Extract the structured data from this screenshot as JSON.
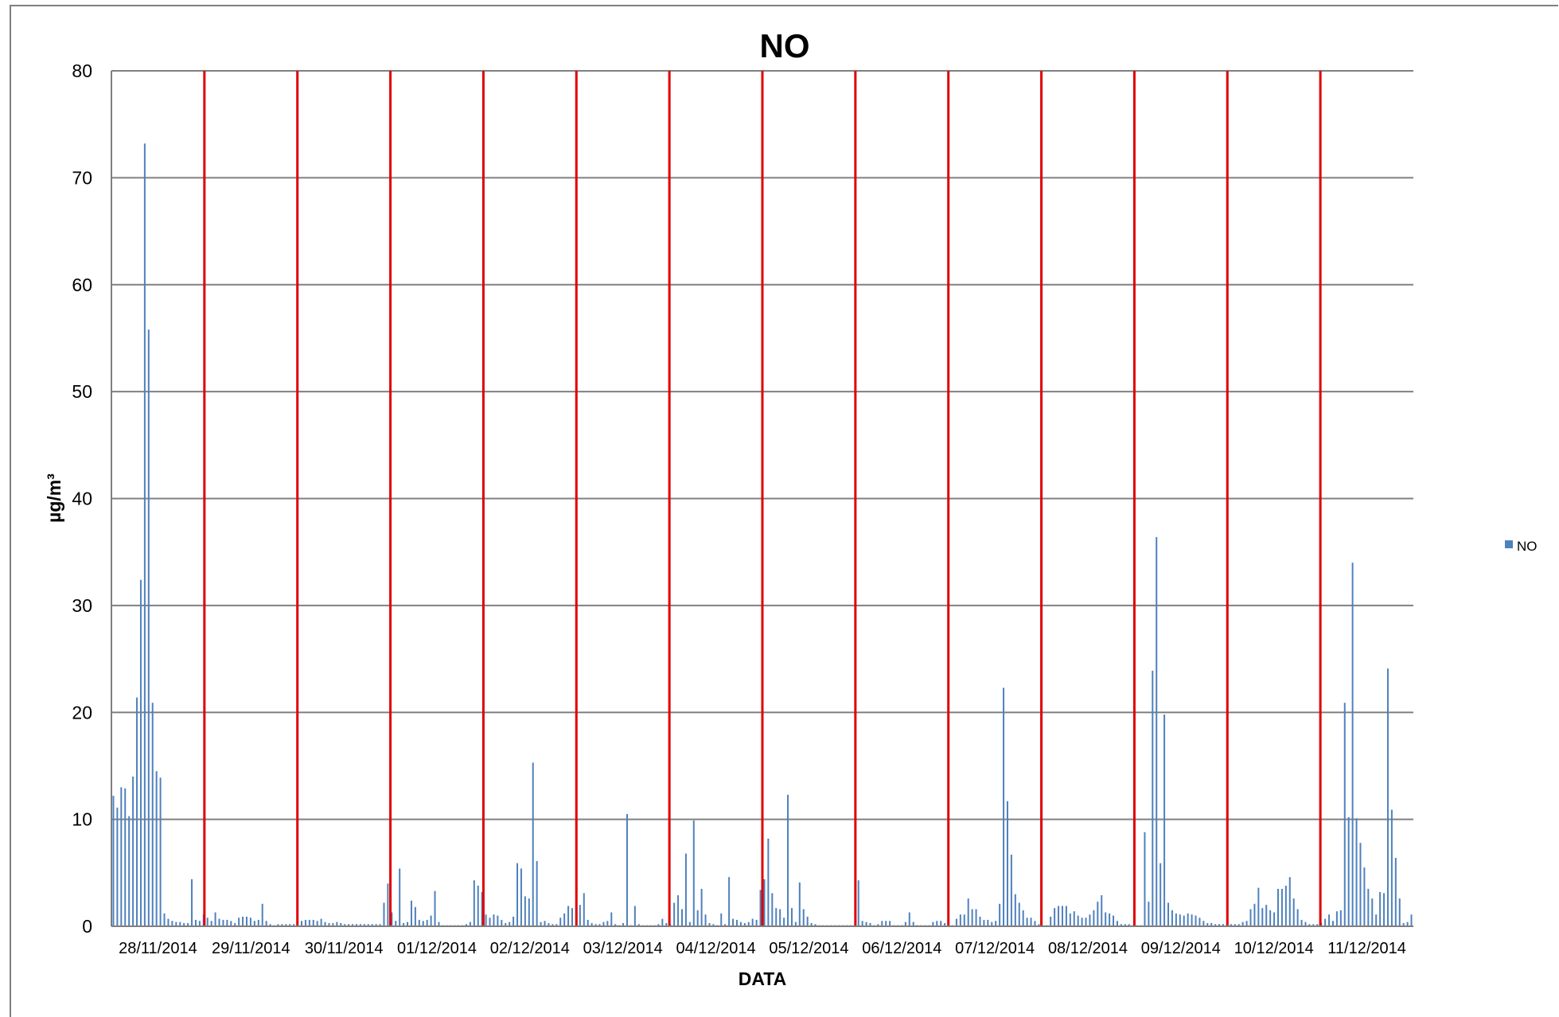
{
  "chart_data": {
    "type": "bar",
    "title": "NO",
    "xlabel": "DATA",
    "ylabel": "µg/m³",
    "ylim": [
      0,
      80
    ],
    "yticks": [
      "0",
      "10",
      "20",
      "30",
      "40",
      "50",
      "60",
      "70",
      "80"
    ],
    "grid": true,
    "legend_position": "right",
    "day_labels": [
      "28/11/2014",
      "29/11/2014",
      "30/11/2014",
      "01/12/2014",
      "02/12/2014",
      "03/12/2014",
      "04/12/2014",
      "05/12/2014",
      "06/12/2014",
      "07/12/2014",
      "08/12/2014",
      "09/12/2014",
      "10/12/2014",
      "11/12/2014"
    ],
    "day_separators": [
      "29/11/2014",
      "30/11/2014",
      "01/12/2014",
      "02/12/2014",
      "03/12/2014",
      "04/12/2014",
      "05/12/2014",
      "06/12/2014",
      "07/12/2014",
      "08/12/2014",
      "09/12/2014",
      "10/12/2014",
      "11/12/2014"
    ],
    "separator_color": "#e00000",
    "series": [
      {
        "name": "NO",
        "color": "#4f81bd",
        "values": [
          12.2,
          11.1,
          13.0,
          12.9,
          10.3,
          14.0,
          21.4,
          32.4,
          73.2,
          55.8,
          20.9,
          14.5,
          13.9,
          1.2,
          0.7,
          0.5,
          0.4,
          0.4,
          0.3,
          0.3,
          4.4,
          0.6,
          0.5,
          1.1,
          0.8,
          0.5,
          1.3,
          0.7,
          0.6,
          0.6,
          0.5,
          0.3,
          0.8,
          0.9,
          0.9,
          0.8,
          0.5,
          0.6,
          2.1,
          0.5,
          0.2,
          0.1,
          0.2,
          0.2,
          0.2,
          0.2,
          0.2,
          0.2,
          0.5,
          0.6,
          0.6,
          0.6,
          0.5,
          0.7,
          0.4,
          0.3,
          0.3,
          0.4,
          0.3,
          0.2,
          0.2,
          0.2,
          0.2,
          0.2,
          0.2,
          0.2,
          0.2,
          0.2,
          0.2,
          2.2,
          4.0,
          1.3,
          0.5,
          5.4,
          0.3,
          0.4,
          2.4,
          1.8,
          0.6,
          0.5,
          0.6,
          1.0,
          3.3,
          0.4,
          0.1,
          0.1,
          0.1,
          0.1,
          0.1,
          0.1,
          0.2,
          0.4,
          4.3,
          3.8,
          3.2,
          1.1,
          0.8,
          1.1,
          1.0,
          0.6,
          0.3,
          0.4,
          0.9,
          5.9,
          5.4,
          2.8,
          2.6,
          15.3,
          6.1,
          0.4,
          0.5,
          0.3,
          0.2,
          0.2,
          0.8,
          1.2,
          1.9,
          1.7,
          1.8,
          2.0,
          3.1,
          0.6,
          0.3,
          0.2,
          0.2,
          0.4,
          0.5,
          1.3,
          0.2,
          0.1,
          0.3,
          10.5,
          0.1,
          1.9,
          0.2,
          0.1,
          0.1,
          0.1,
          0.1,
          0.2,
          0.7,
          0.3,
          0.2,
          2.2,
          2.9,
          1.6,
          6.8,
          0.4,
          9.9,
          1.5,
          3.5,
          1.1,
          0.3,
          0.2,
          0.1,
          1.2,
          0.2,
          4.6,
          0.7,
          0.6,
          0.4,
          0.3,
          0.4,
          0.7,
          0.6,
          3.4,
          4.4,
          8.2,
          3.1,
          1.7,
          1.6,
          0.8,
          12.3,
          1.7,
          0.4,
          4.1,
          1.6,
          0.9,
          0.3,
          0.2,
          0.1,
          0.1,
          0.1,
          0.1,
          0.1,
          0.1,
          0.1,
          0.1,
          0.1,
          0.1,
          4.3,
          0.5,
          0.4,
          0.3,
          0.1,
          0.2,
          0.5,
          0.5,
          0.5,
          0.1,
          0.1,
          0.1,
          0.4,
          1.3,
          0.4,
          0.1,
          0.1,
          0.1,
          0.1,
          0.4,
          0.5,
          0.5,
          0.3,
          0.2,
          0.1,
          0.7,
          1.1,
          1.1,
          2.6,
          1.6,
          1.6,
          0.9,
          0.6,
          0.6,
          0.4,
          0.5,
          2.1,
          22.3,
          11.7,
          6.7,
          3.0,
          2.2,
          1.5,
          0.8,
          0.8,
          0.5,
          0.2,
          0.1,
          0.1,
          0.9,
          1.7,
          1.9,
          1.9,
          1.9,
          1.2,
          1.4,
          1.0,
          0.8,
          0.8,
          1.1,
          1.5,
          2.3,
          2.9,
          1.3,
          1.2,
          1.0,
          0.5,
          0.2,
          0.2,
          0.2,
          0.1,
          0.1,
          0.1,
          8.8,
          2.3,
          23.9,
          36.4,
          5.9,
          19.8,
          2.2,
          1.5,
          1.2,
          1.1,
          1.0,
          1.2,
          1.1,
          1.0,
          0.8,
          0.5,
          0.3,
          0.3,
          0.2,
          0.2,
          0.2,
          0.2,
          0.2,
          0.2,
          0.2,
          0.4,
          0.5,
          1.6,
          2.1,
          3.6,
          1.7,
          2.0,
          1.5,
          1.3,
          3.5,
          3.5,
          3.8,
          4.6,
          2.6,
          1.6,
          0.6,
          0.4,
          0.2,
          0.2,
          0.2,
          0.3,
          0.7,
          1.1,
          0.5,
          1.4,
          1.5,
          20.9,
          10.2,
          34.0,
          10.1,
          7.8,
          5.5,
          3.5,
          2.6,
          1.1,
          3.2,
          3.1,
          24.1,
          10.9,
          6.4,
          2.6,
          0.3,
          0.4,
          1.1
        ]
      }
    ]
  }
}
